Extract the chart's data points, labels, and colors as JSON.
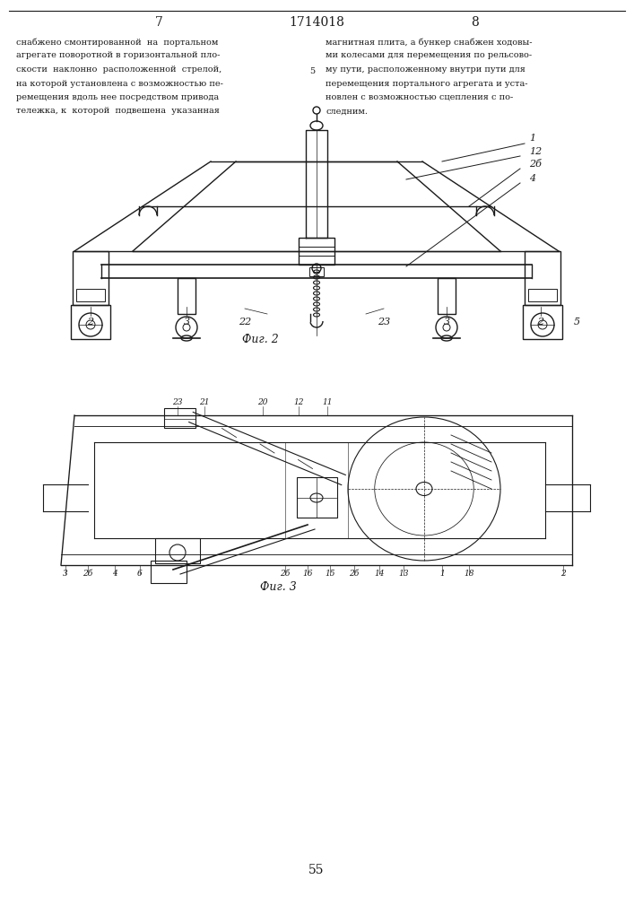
{
  "page_number_left": "7",
  "page_number_center": "1714018",
  "page_number_right": "8",
  "fig2_caption": "Фиг. 2",
  "fig3_caption": "Фиг. 3",
  "page_bottom": "55",
  "bg_color": "#ffffff",
  "line_color": "#1a1a1a",
  "text_color": "#1a1a1a",
  "left_lines": [
    "снабжено смонтированной  на  портальном",
    "агрегате поворотной в горизонтальной пло-",
    "скости  наклонно  расположенной  стрелой,",
    "на которой установлена с возможностью пе-",
    "ремещения вдоль нее посредством привода",
    "тележка, к  которой  подвешена  указанная"
  ],
  "right_lines": [
    "магнитная плита, а бункер снабжен ходовы-",
    "ми колесами для перемещения по рельсово-",
    "му пути, расположенному внутри пути для",
    "перемещения портального агрегата и уста-",
    "новлен с возможностью сцепления с по-",
    "следним."
  ]
}
